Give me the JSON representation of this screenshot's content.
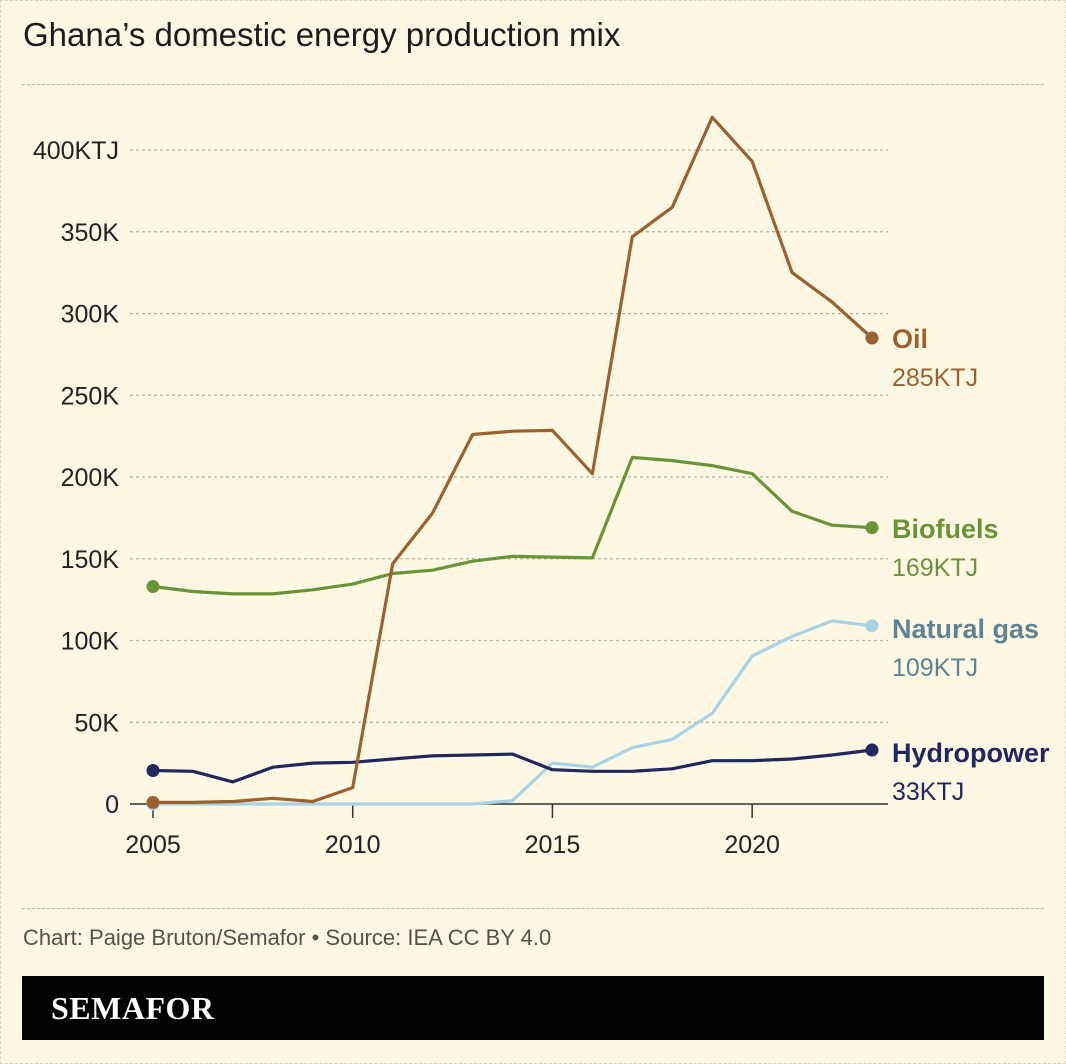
{
  "title": "Ghana’s domestic energy production mix",
  "footer": {
    "credit": "Chart: Paige Bruton/Semafor • Source: IEA CC BY 4.0"
  },
  "brand": {
    "name": "SEMAFOR"
  },
  "colors": {
    "background": "#fcf8e4",
    "grid": "#b5b1a1",
    "text": "#1c1c1c",
    "oil": "#9b6230",
    "biofuels": "#6a9438",
    "natural_gas": "#a9d2e4",
    "natural_gas_label": "#5e8392",
    "hydropower": "#22275f"
  },
  "chart_data": {
    "type": "line",
    "title": "Ghana’s domestic energy production mix",
    "xlabel": "",
    "ylabel": "",
    "xlim": [
      2005,
      2023
    ],
    "ylim": [
      0,
      420000
    ],
    "x": [
      2005,
      2006,
      2007,
      2008,
      2009,
      2010,
      2011,
      2012,
      2013,
      2014,
      2015,
      2016,
      2017,
      2018,
      2019,
      2020,
      2021,
      2022,
      2023
    ],
    "x_ticks": [
      2005,
      2010,
      2015,
      2020
    ],
    "x_tick_labels": [
      "2005",
      "2010",
      "2015",
      "2020"
    ],
    "y_ticks": [
      0,
      50000,
      100000,
      150000,
      200000,
      250000,
      300000,
      350000,
      400000
    ],
    "y_tick_labels": [
      "0",
      "50K",
      "100K",
      "150K",
      "200K",
      "250K",
      "300K",
      "350K",
      "400KTJ"
    ],
    "grid": "horizontal dashed",
    "legend": "direct labels at line ends (right)",
    "series": [
      {
        "key": "oil",
        "name": "Oil",
        "end_label": "285KTJ",
        "color": "#9b6230",
        "label_color": "#9b6230",
        "values": [
          1000,
          1000,
          1500,
          3500,
          1500,
          10000,
          147000,
          178000,
          226000,
          228000,
          228500,
          202000,
          347000,
          365000,
          420000,
          393000,
          325000,
          307000,
          285000
        ]
      },
      {
        "key": "biofuels",
        "name": "Biofuels",
        "end_label": "169KTJ",
        "color": "#6a9438",
        "label_color": "#6a9438",
        "values": [
          133000,
          130000,
          128500,
          128500,
          131000,
          134500,
          141000,
          143000,
          148500,
          151500,
          151000,
          150500,
          212000,
          210000,
          207000,
          202000,
          179000,
          170500,
          169000
        ]
      },
      {
        "key": "natural_gas",
        "name": "Natural gas",
        "end_label": "109KTJ",
        "color": "#a9d2e4",
        "label_color": "#5e8392",
        "values": [
          0,
          0,
          0,
          0,
          0,
          0,
          0,
          0,
          0,
          2000,
          25000,
          22500,
          34500,
          39500,
          55500,
          90500,
          102500,
          112000,
          109000
        ]
      },
      {
        "key": "hydropower",
        "name": "Hydropower",
        "end_label": "33KTJ",
        "color": "#22275f",
        "label_color": "#22275f",
        "values": [
          20500,
          20000,
          13500,
          22500,
          25000,
          25500,
          27500,
          29500,
          30000,
          30500,
          21000,
          20000,
          20000,
          21500,
          26500,
          26500,
          27500,
          30000,
          33000
        ]
      }
    ]
  }
}
